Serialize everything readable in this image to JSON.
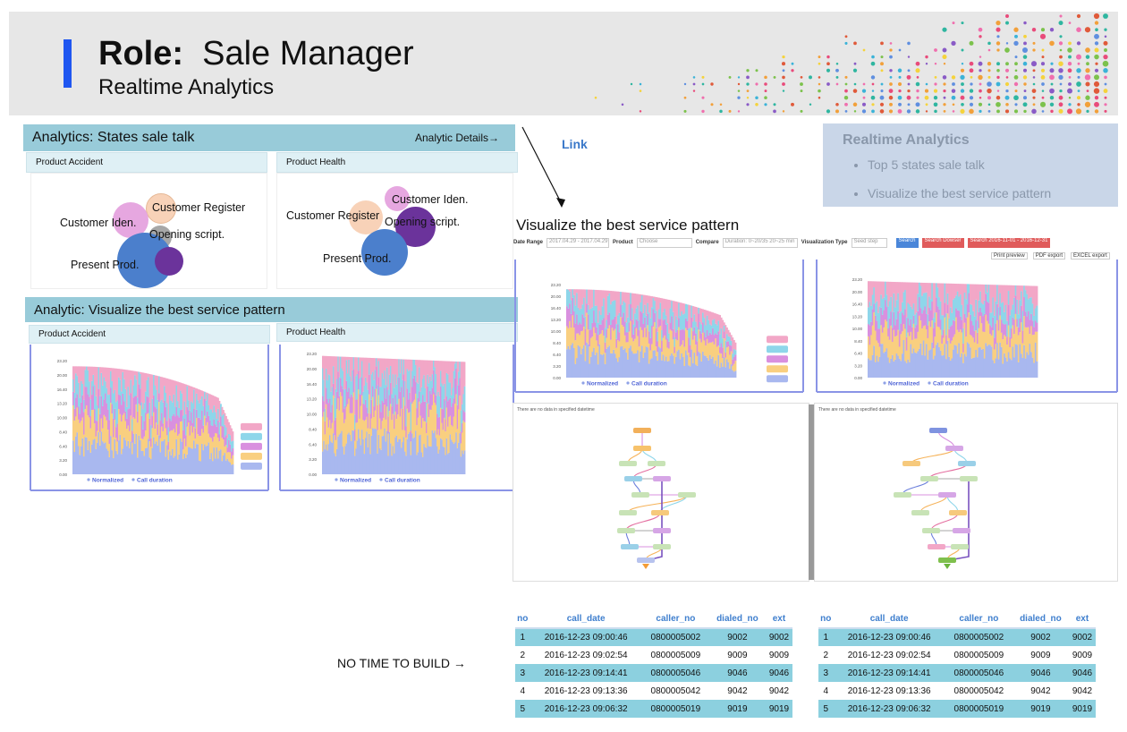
{
  "header": {
    "role_label": "Role:",
    "role_value": "Sale Manager",
    "subtitle": "Realtime Analytics"
  },
  "panel_states": {
    "title": "Analytics: States sale talk",
    "details_link": "Analytic  Details",
    "card_left": {
      "title": "Product  Accident",
      "labels": [
        "Customer  Iden.",
        "Customer  Register",
        "Opening  script.",
        "Present  Prod."
      ]
    },
    "card_right": {
      "title": "Product  Health",
      "labels": [
        "Customer  Iden.",
        "Customer  Register",
        "Opening  script.",
        "Present  Prod."
      ]
    }
  },
  "panel_pattern": {
    "title": "Analytic: Visualize the best service  pattern",
    "card_left_title": "Product  Accident",
    "card_right_title": "Product  Health"
  },
  "link_label": "Link",
  "note": {
    "title": "Realtime Analytics",
    "items": [
      "Top 5 states sale talk",
      "Visualize the best service pattern"
    ]
  },
  "visual": {
    "title": "Visualize the best service pattern",
    "controls": {
      "date_range_label": "Date Range",
      "date_range_value": "2017.04.29 - 2017.04.29",
      "product_label": "Product",
      "product_value": "Choose",
      "compare_label": "Compare",
      "compare_value": "Duration: 0~20/35 20~25 min",
      "vis_type_label": "Visualization Type",
      "vis_type_value": "Seed step",
      "search": "Search",
      "search_dowser": "Search Dowser",
      "search_range": "Search 2016-11-01 - 2016-12-31",
      "print": "Print preview",
      "pdf": "PDF export",
      "excel": "EXCEL export"
    },
    "no_data_left": "There are no data in specified datetime",
    "no_data_right": "There are no data in specified datetime"
  },
  "chart_legend": {
    "normalized": "Normalized",
    "call_duration": "Call duration"
  },
  "chart_yticks": [
    "23.20",
    "20.00",
    "16.40",
    "13.20",
    "10.00",
    "8.40",
    "6.40",
    "3.20",
    "0.00"
  ],
  "series_colors": [
    "#a9b8ef",
    "#f9cf80",
    "#d990df",
    "#8ed6ea",
    "#f2a7c7"
  ],
  "no_time_label": "NO TIME TO BUILD",
  "table": {
    "columns": [
      "no",
      "call_date",
      "caller_no",
      "dialed_no",
      "ext"
    ],
    "rows": [
      [
        "1",
        "2016-12-23 09:00:46",
        "0800005002",
        "9002",
        "9002"
      ],
      [
        "2",
        "2016-12-23 09:02:54",
        "0800005009",
        "9009",
        "9009"
      ],
      [
        "3",
        "2016-12-23 09:14:41",
        "0800005046",
        "9046",
        "9046"
      ],
      [
        "4",
        "2016-12-23 09:13:36",
        "0800005042",
        "9042",
        "9042"
      ],
      [
        "5",
        "2016-12-23 09:06:32",
        "0800005019",
        "9019",
        "9019"
      ]
    ]
  }
}
